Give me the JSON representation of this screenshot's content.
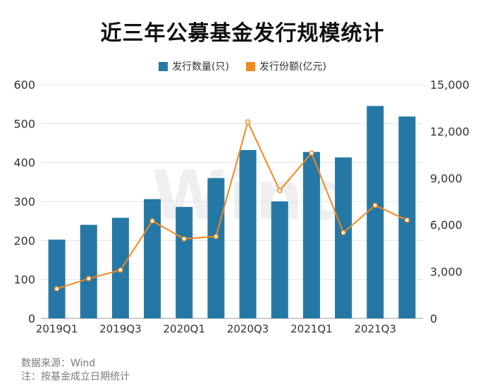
{
  "chart_data": {
    "type": "bar",
    "title": "近三年公募基金发行规模统计",
    "categories": [
      "2019Q1",
      "2019Q2",
      "2019Q3",
      "2019Q4",
      "2020Q1",
      "2020Q2",
      "2020Q3",
      "2020Q4",
      "2021Q1",
      "2021Q2",
      "2021Q3",
      "2021Q4"
    ],
    "x_tick_labels": [
      "2019Q1",
      "2019Q3",
      "2020Q1",
      "2020Q3",
      "2021Q1",
      "2021Q3"
    ],
    "series": [
      {
        "name": "发行数量(只)",
        "type": "bar",
        "axis": "left",
        "color": "#2578a5",
        "values": [
          202,
          240,
          258,
          306,
          286,
          360,
          432,
          300,
          427,
          413,
          545,
          518
        ]
      },
      {
        "name": "发行份额(亿元)",
        "type": "line",
        "axis": "right",
        "color": "#f0891f",
        "values": [
          1900,
          2550,
          3100,
          6250,
          5100,
          5250,
          12600,
          8200,
          10600,
          5500,
          7250,
          6300
        ]
      }
    ],
    "y_left": {
      "min": 0,
      "max": 600,
      "ticks": [
        "0",
        "100",
        "200",
        "300",
        "400",
        "500",
        "600"
      ]
    },
    "y_right": {
      "min": 0,
      "max": 15000,
      "ticks": [
        "0",
        "3,000",
        "6,000",
        "9,000",
        "12,000",
        "15,000"
      ]
    },
    "legend_position": "top-center",
    "grid": true
  },
  "watermark": "Wind",
  "footer": {
    "source": "数据来源：Wind",
    "note": "注：按基金成立日期统计"
  }
}
